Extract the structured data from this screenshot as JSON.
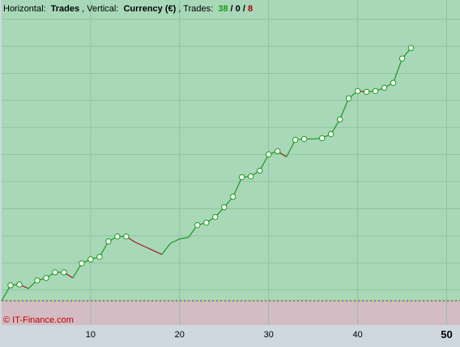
{
  "header": {
    "horizontal_label": "Horizontal:",
    "horizontal_value": "Trades",
    "vertical_label": ", Vertical:",
    "vertical_value": "Currency (€)",
    "trades_label": ", Trades:",
    "trades_win": "38",
    "sep1": " / ",
    "trades_even": "0",
    "sep2": " / ",
    "trades_loss": "8"
  },
  "watermark": "© IT-Finance.com",
  "colors": {
    "profit_bg": "#a8d8b8",
    "loss_bg": "#d4bcc4",
    "frame_bg": "#cfd8df",
    "grid": "#8fc49f",
    "win_line": "#1a9a1a",
    "loss_line": "#a01818",
    "marker_fill": "#ffffff",
    "marker_stroke": "#1a9a1a",
    "win_text": "#1a9a1a",
    "loss_text": "#b00000",
    "zero_line": "#3050c0"
  },
  "chart_data": {
    "type": "line",
    "title": "",
    "xlabel": "Trades",
    "ylabel": "Currency (€)",
    "x_ticks": [
      {
        "value": 10,
        "label": "10",
        "bold": false
      },
      {
        "value": 20,
        "label": "20",
        "bold": false
      },
      {
        "value": 30,
        "label": "30",
        "bold": false
      },
      {
        "value": 40,
        "label": "40",
        "bold": false
      },
      {
        "value": 50,
        "label": "50",
        "bold": true
      }
    ],
    "xlim": [
      0,
      51.5
    ],
    "ylim": [
      -30,
      370
    ],
    "grid": true,
    "series": [
      {
        "x": [
          0,
          1,
          2,
          3,
          4,
          5,
          6,
          7,
          8,
          9,
          10,
          11,
          12,
          13,
          14,
          15,
          16,
          17,
          18,
          19,
          20,
          21,
          22,
          23,
          24,
          25,
          26,
          27,
          28,
          29,
          30,
          31,
          32,
          33,
          34,
          35,
          36,
          37,
          38,
          39,
          40,
          41,
          42,
          43,
          44,
          45,
          46
        ],
        "y": [
          0,
          19,
          20,
          15,
          25,
          28,
          35,
          35,
          28,
          46,
          51,
          54,
          73,
          79,
          79,
          72,
          67,
          62,
          57,
          71,
          76,
          78,
          93,
          96,
          103,
          115,
          128,
          152,
          153,
          160,
          180,
          184,
          177,
          198,
          199,
          199,
          200,
          205,
          223,
          249,
          258,
          257,
          258,
          262,
          268,
          298,
          311
        ],
        "markers": [
          false,
          true,
          true,
          false,
          true,
          true,
          true,
          true,
          false,
          true,
          true,
          true,
          true,
          true,
          true,
          false,
          false,
          false,
          false,
          false,
          false,
          false,
          true,
          true,
          true,
          true,
          true,
          true,
          true,
          true,
          true,
          true,
          false,
          true,
          true,
          false,
          true,
          true,
          true,
          true,
          true,
          true,
          true,
          true,
          true,
          true,
          true
        ]
      }
    ]
  }
}
